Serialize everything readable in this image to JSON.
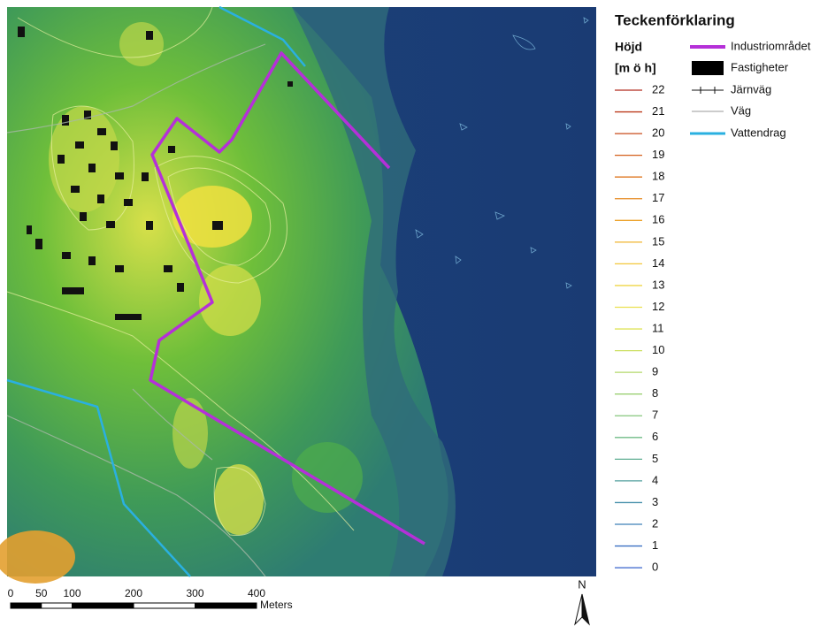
{
  "legend": {
    "title": "Teckenförklaring",
    "height_title": "Höjd",
    "height_unit": "[m ö h]",
    "heights": [
      {
        "label": 22,
        "color": "#b22a1e"
      },
      {
        "label": 21,
        "color": "#bd3a1c"
      },
      {
        "label": 20,
        "color": "#c84b1a"
      },
      {
        "label": 19,
        "color": "#d45f1a"
      },
      {
        "label": 18,
        "color": "#df751d"
      },
      {
        "label": 17,
        "color": "#e68a21"
      },
      {
        "label": 16,
        "color": "#eca128"
      },
      {
        "label": 15,
        "color": "#f1b530"
      },
      {
        "label": 14,
        "color": "#f2c83a"
      },
      {
        "label": 13,
        "color": "#efd646"
      },
      {
        "label": 12,
        "color": "#ebe050"
      },
      {
        "label": 11,
        "color": "#dfe35a"
      },
      {
        "label": 10,
        "color": "#cce063"
      },
      {
        "label": 9,
        "color": "#b3d96b"
      },
      {
        "label": 8,
        "color": "#9bd073"
      },
      {
        "label": 7,
        "color": "#84c67c"
      },
      {
        "label": 6,
        "color": "#6fbb86"
      },
      {
        "label": 5,
        "color": "#5eae91"
      },
      {
        "label": 4,
        "color": "#509f9d"
      },
      {
        "label": 3,
        "color": "#4690aa"
      },
      {
        "label": 2,
        "color": "#3f80b7"
      },
      {
        "label": 1,
        "color": "#3a70c2"
      },
      {
        "label": 0,
        "color": "#3762cc"
      }
    ],
    "items": [
      "Industriområdet",
      "Fastigheter",
      "Järnväg",
      "Väg",
      "Vattendrag"
    ]
  },
  "scale_bar": {
    "ticks": [
      0,
      50,
      100,
      200,
      300,
      400
    ],
    "unit": "Meters"
  },
  "north_arrow": "N"
}
